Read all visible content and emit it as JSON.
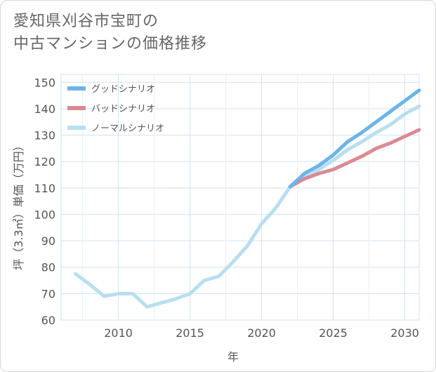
{
  "title": {
    "line1": "愛知県刈谷市宝町の",
    "line2": "中古マンションの価格推移"
  },
  "chart_data": {
    "type": "line",
    "xlabel": "年",
    "ylabel": "坪（3.3㎡）単価（万円）",
    "xlim": [
      2006,
      2031
    ],
    "ylim": [
      60,
      153
    ],
    "xticks": [
      2010,
      2015,
      2020,
      2025,
      2030
    ],
    "yticks": [
      60,
      70,
      80,
      90,
      100,
      110,
      120,
      130,
      140,
      150
    ],
    "grid": true,
    "legend_position": "top-left",
    "series": [
      {
        "name": "グッドシナリオ",
        "color": "#6cb4ea",
        "x": [
          2022,
          2023,
          2024,
          2025,
          2026,
          2027,
          2028,
          2029,
          2030,
          2031
        ],
        "y": [
          110.5,
          115.5,
          118.5,
          122.5,
          127.5,
          131,
          135,
          139,
          143,
          147
        ]
      },
      {
        "name": "バッドシナリオ",
        "color": "#dc8a92",
        "x": [
          2022,
          2023,
          2024,
          2025,
          2026,
          2027,
          2028,
          2029,
          2030,
          2031
        ],
        "y": [
          110.5,
          113.5,
          115.5,
          117,
          119.5,
          122,
          125,
          127,
          129.5,
          132
        ]
      },
      {
        "name": "ノーマルシナリオ",
        "color": "#b8dff0",
        "x": [
          2007,
          2008,
          2009,
          2010,
          2011,
          2012,
          2013,
          2014,
          2015,
          2016,
          2017,
          2018,
          2019,
          2020,
          2021,
          2022,
          2023,
          2024,
          2025,
          2026,
          2027,
          2028,
          2029,
          2030,
          2031
        ],
        "y": [
          77.5,
          73.5,
          69,
          70,
          70,
          65,
          66.5,
          68,
          70,
          75,
          76.5,
          82,
          88,
          96.5,
          102.5,
          110.5,
          114,
          117,
          120.5,
          124.5,
          127.5,
          131,
          134,
          138,
          141
        ]
      }
    ]
  }
}
